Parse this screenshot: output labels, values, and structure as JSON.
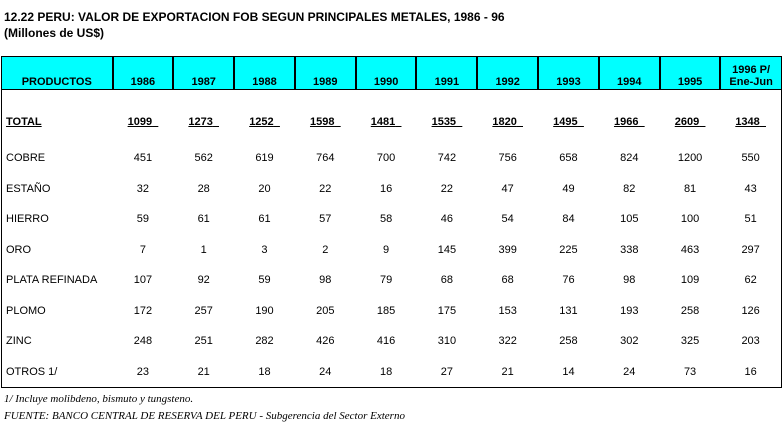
{
  "title": {
    "line1": "12.22  PERU: VALOR DE EXPORTACION FOB SEGUN PRINCIPALES METALES, 1986 - 96",
    "line2": "(Millones de US$)"
  },
  "headers": [
    "PRODUCTOS",
    "1986",
    "1987",
    "1988",
    "1989",
    "1990",
    "1991",
    "1992",
    "1993",
    "1994",
    "1995",
    "1996 P/",
    "Ene-Jun"
  ],
  "total": {
    "label": "TOTAL",
    "values": [
      "1099",
      "1273",
      "1252",
      "1598",
      "1481",
      "1535",
      "1820",
      "1495",
      "1966",
      "2609",
      "1348"
    ]
  },
  "rows": [
    {
      "label": "COBRE",
      "values": [
        "451",
        "562",
        "619",
        "764",
        "700",
        "742",
        "756",
        "658",
        "824",
        "1200",
        "550"
      ]
    },
    {
      "label": "ESTAÑO",
      "values": [
        "32",
        "28",
        "20",
        "22",
        "16",
        "22",
        "47",
        "49",
        "82",
        "81",
        "43"
      ]
    },
    {
      "label": "HIERRO",
      "values": [
        "59",
        "61",
        "61",
        "57",
        "58",
        "46",
        "54",
        "84",
        "105",
        "100",
        "51"
      ]
    },
    {
      "label": "ORO",
      "values": [
        "7",
        "1",
        "3",
        "2",
        "9",
        "145",
        "399",
        "225",
        "338",
        "463",
        "297"
      ]
    },
    {
      "label": "PLATA REFINADA",
      "values": [
        "107",
        "92",
        "59",
        "98",
        "79",
        "68",
        "68",
        "76",
        "98",
        "109",
        "62"
      ]
    },
    {
      "label": "PLOMO",
      "values": [
        "172",
        "257",
        "190",
        "205",
        "185",
        "175",
        "153",
        "131",
        "193",
        "258",
        "126"
      ]
    },
    {
      "label": "ZINC",
      "values": [
        "248",
        "251",
        "282",
        "426",
        "416",
        "310",
        "322",
        "258",
        "302",
        "325",
        "203"
      ]
    },
    {
      "label": "OTROS 1/",
      "values": [
        "23",
        "21",
        "18",
        "24",
        "18",
        "27",
        "21",
        "14",
        "24",
        "73",
        "16"
      ]
    }
  ],
  "notes": {
    "footnote": "1/ Incluye molibdeno, bismuto y tungsteno.",
    "source": "FUENTE: BANCO CENTRAL DE RESERVA DEL PERU - Subgerencia del Sector Externo"
  }
}
